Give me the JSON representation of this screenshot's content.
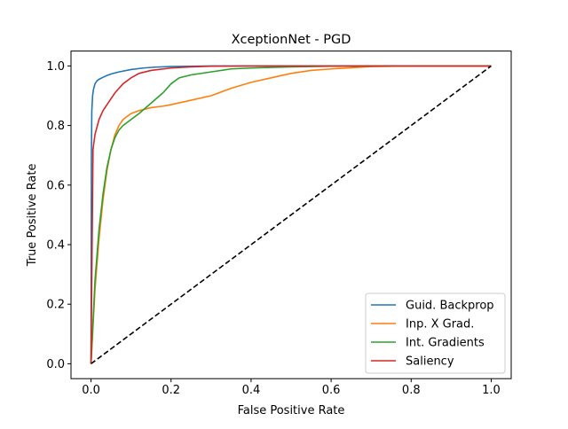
{
  "chart_data": {
    "type": "line",
    "title": "XceptionNet - PGD",
    "xlabel": "False Positive Rate",
    "ylabel": "True Positive Rate",
    "xlim": [
      -0.05,
      1.05
    ],
    "ylim": [
      -0.05,
      1.05
    ],
    "xticks": [
      0.0,
      0.2,
      0.4,
      0.6,
      0.8,
      1.0
    ],
    "xtick_labels": [
      "0.0",
      "0.2",
      "0.4",
      "0.6",
      "0.8",
      "1.0"
    ],
    "yticks": [
      0.0,
      0.2,
      0.4,
      0.6,
      0.8,
      1.0
    ],
    "ytick_labels": [
      "0.0",
      "0.2",
      "0.4",
      "0.6",
      "0.8",
      "1.0"
    ],
    "grid": false,
    "legend_position": "lower-right",
    "series": [
      {
        "name": "Guid. Backprop",
        "color": "#1f77b4",
        "x": [
          0,
          0.001,
          0.002,
          0.004,
          0.006,
          0.01,
          0.015,
          0.02,
          0.03,
          0.04,
          0.05,
          0.07,
          0.1,
          0.13,
          0.16,
          0.2,
          0.3,
          0.5,
          1.0
        ],
        "y": [
          0,
          0.7,
          0.85,
          0.9,
          0.92,
          0.94,
          0.95,
          0.955,
          0.962,
          0.968,
          0.973,
          0.98,
          0.988,
          0.993,
          0.996,
          0.998,
          1.0,
          1.0,
          1.0
        ]
      },
      {
        "name": "Inp. X Grad.",
        "color": "#ff7f0e",
        "x": [
          0,
          0.01,
          0.02,
          0.03,
          0.04,
          0.05,
          0.06,
          0.07,
          0.08,
          0.1,
          0.12,
          0.15,
          0.18,
          0.2,
          0.25,
          0.3,
          0.35,
          0.4,
          0.45,
          0.5,
          0.55,
          0.6,
          0.7,
          0.8,
          1.0
        ],
        "y": [
          0,
          0.25,
          0.42,
          0.55,
          0.65,
          0.72,
          0.77,
          0.8,
          0.82,
          0.84,
          0.85,
          0.86,
          0.865,
          0.87,
          0.885,
          0.9,
          0.925,
          0.945,
          0.96,
          0.975,
          0.985,
          0.99,
          0.998,
          1.0,
          1.0
        ]
      },
      {
        "name": "Int. Gradients",
        "color": "#2ca02c",
        "x": [
          0,
          0.01,
          0.02,
          0.03,
          0.04,
          0.05,
          0.06,
          0.07,
          0.08,
          0.1,
          0.12,
          0.15,
          0.18,
          0.2,
          0.22,
          0.25,
          0.3,
          0.35,
          0.4,
          0.5,
          0.6,
          0.8,
          1.0
        ],
        "y": [
          0,
          0.28,
          0.45,
          0.57,
          0.66,
          0.72,
          0.76,
          0.785,
          0.8,
          0.82,
          0.84,
          0.875,
          0.91,
          0.94,
          0.96,
          0.97,
          0.98,
          0.99,
          0.993,
          0.997,
          0.999,
          1.0,
          1.0
        ]
      },
      {
        "name": "Saliency",
        "color": "#d62728",
        "x": [
          0,
          0.005,
          0.01,
          0.02,
          0.03,
          0.04,
          0.05,
          0.06,
          0.08,
          0.1,
          0.12,
          0.15,
          0.2,
          0.25,
          0.3,
          0.4,
          1.0
        ],
        "y": [
          0,
          0.72,
          0.77,
          0.82,
          0.85,
          0.87,
          0.89,
          0.91,
          0.94,
          0.96,
          0.975,
          0.985,
          0.993,
          0.997,
          0.999,
          1.0,
          1.0
        ]
      }
    ],
    "reference_line": {
      "name": "chance",
      "color": "#000000",
      "style": "dashed",
      "x": [
        0,
        1
      ],
      "y": [
        0,
        1
      ]
    }
  }
}
